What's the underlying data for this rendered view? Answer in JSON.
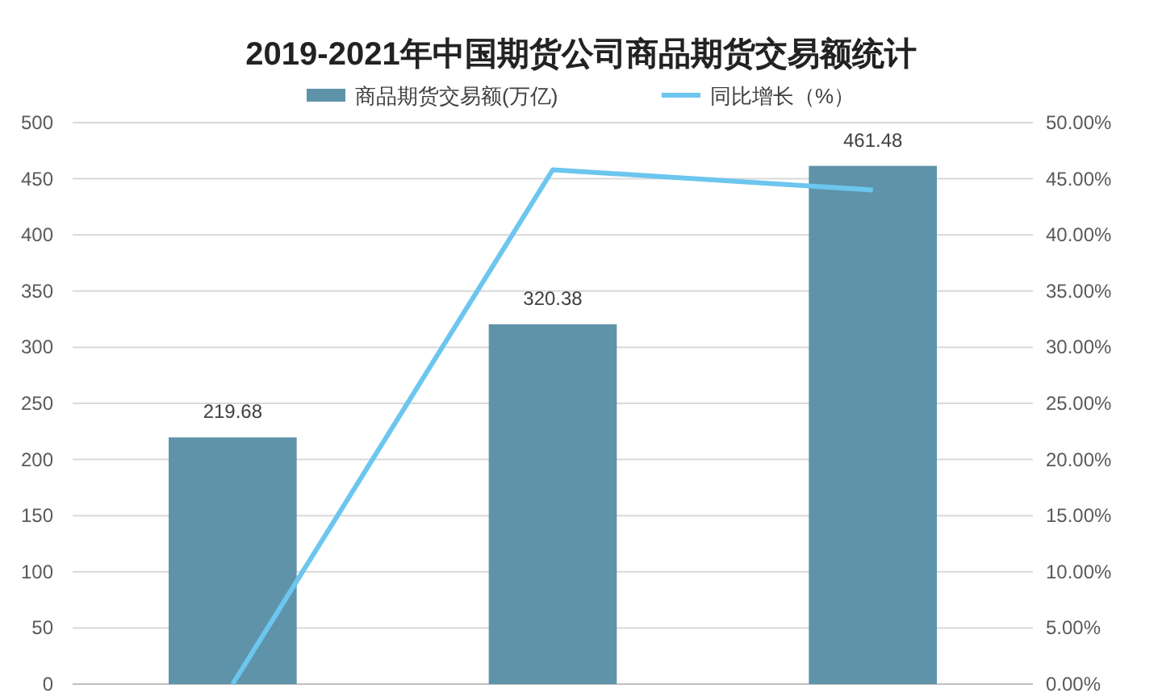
{
  "chart_data": {
    "type": "bar",
    "title": "2019-2021年中国期货公司商品期货交易额统计",
    "categories": [
      null,
      null,
      null
    ],
    "series": [
      {
        "name": "商品期货交易额(万亿)",
        "color": "#5f93aa",
        "values": [
          219.68,
          320.38,
          461.48
        ],
        "value_labels": [
          "219.68",
          "320.38",
          "461.48"
        ]
      },
      {
        "name": "同比增长（%）",
        "type": "line",
        "axis": "y2",
        "color": "#6cc6ee",
        "values": [
          0,
          45.8,
          44.0
        ]
      }
    ],
    "ylim": [
      0,
      500
    ],
    "yticks": [
      0,
      50,
      100,
      150,
      200,
      250,
      300,
      350,
      400,
      450,
      500
    ],
    "y2lim": [
      0,
      50
    ],
    "y2ticks": [
      {
        "value": 0,
        "label": "0.00%"
      },
      {
        "value": 5,
        "label": "5.00%"
      },
      {
        "value": 10,
        "label": "10.00%"
      },
      {
        "value": 15,
        "label": "15.00%"
      },
      {
        "value": 20,
        "label": "20.00%"
      },
      {
        "value": 25,
        "label": "25.00%"
      },
      {
        "value": 30,
        "label": "30.00%"
      },
      {
        "value": 35,
        "label": "35.00%"
      },
      {
        "value": 40,
        "label": "40.00%"
      },
      {
        "value": 45,
        "label": "45.00%"
      },
      {
        "value": 50,
        "label": "50.00%"
      }
    ],
    "grid": "y",
    "legend": "top",
    "marker": "none"
  }
}
